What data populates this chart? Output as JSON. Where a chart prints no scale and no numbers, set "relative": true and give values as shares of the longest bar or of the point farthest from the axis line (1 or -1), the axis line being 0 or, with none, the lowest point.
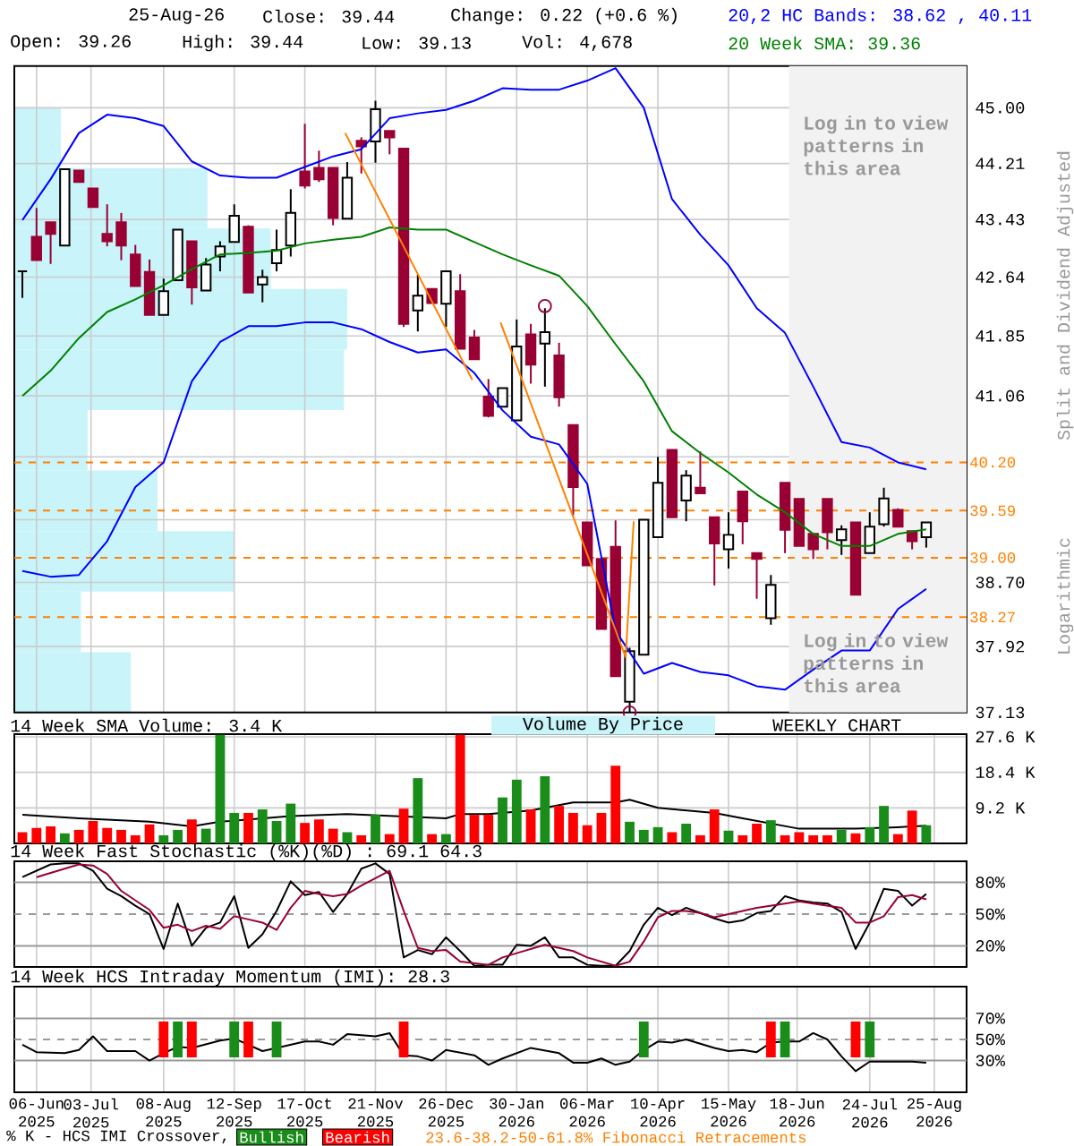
{
  "chart_data": [
    {
      "type": "candlestick",
      "title": "25-Aug-26",
      "ylabel": "Split and Dividend Adjusted",
      "log": "y",
      "grid": true,
      "tick_labels": "y",
      "legend": "top",
      "colors": [
        "#000000",
        "#990033",
        "#990033",
        "#000000",
        "#990033",
        "#990033",
        "#990033",
        "#990033",
        "#990033",
        "#990033",
        "#000000",
        "#000000",
        "#990033",
        "#000000",
        "#000000",
        "#000000",
        "#990033",
        "#000000",
        "#000000",
        "#000000",
        "#990033",
        "#990033",
        "#990033",
        "#000000",
        "#990033",
        "#000000",
        "#990033",
        "#990033",
        "#000000",
        "#990033",
        "#000000",
        "#990033",
        "#990033",
        "#990033",
        "#000000",
        "#000000",
        "#990033",
        "#000000",
        "#990033",
        "#990033",
        "#990033",
        "#990033",
        "#990033",
        "#000000",
        "#000000",
        "#000000",
        "#990033",
        "#000000",
        "#990033",
        "#990033",
        "#000000",
        "#990033",
        "#990033",
        "#000000",
        "#990033",
        "#990033",
        "#990033",
        "#990033",
        "#000000",
        "#990033",
        "#000000",
        "#000000",
        "#990033",
        "#990033",
        "#000000"
      ],
      "x": [
        "2025-05-30",
        "2025-06-06",
        "2025-06-13",
        "2025-06-20",
        "2025-06-27",
        "2025-07-04",
        "2025-07-11",
        "2025-07-18",
        "2025-07-25",
        "2025-08-01",
        "2025-08-08",
        "2025-08-15",
        "2025-08-22",
        "2025-08-29",
        "2025-09-05",
        "2025-09-12",
        "2025-09-19",
        "2025-09-26",
        "2025-10-03",
        "2025-10-10",
        "2025-10-17",
        "2025-10-24",
        "2025-10-31",
        "2025-11-07",
        "2025-11-14",
        "2025-11-21",
        "2025-11-28",
        "2025-12-05",
        "2025-12-12",
        "2025-12-19",
        "2025-12-26",
        "2026-01-02",
        "2026-01-09",
        "2026-01-16",
        "2026-01-23",
        "2026-01-30",
        "2026-02-06",
        "2026-02-13",
        "2026-02-20",
        "2026-02-27",
        "2026-03-06",
        "2026-03-13",
        "2026-03-20",
        "2026-03-27",
        "2026-04-03",
        "2026-04-10",
        "2026-04-17",
        "2026-04-24",
        "2026-05-01",
        "2026-05-08",
        "2026-05-15",
        "2026-05-22",
        "2026-05-29",
        "2026-06-05",
        "2026-06-12",
        "2026-06-19",
        "2026-06-26",
        "2026-07-03",
        "2026-07-10",
        "2026-07-17",
        "2026-07-24",
        "2026-07-31",
        "2026-08-07",
        "2026-08-14",
        "2026-08-21"
      ],
      "ohlc": [
        [
          42.72,
          42.72,
          42.36,
          42.72
        ],
        [
          43.19,
          43.59,
          42.87,
          42.87
        ],
        [
          43.39,
          43.39,
          42.82,
          43.23
        ],
        [
          43.07,
          44.13,
          43.07,
          44.13
        ],
        [
          44.11,
          44.11,
          43.95,
          43.95
        ],
        [
          43.86,
          43.86,
          43.6,
          43.6
        ],
        [
          43.23,
          43.64,
          43.06,
          43.13
        ],
        [
          43.39,
          43.52,
          42.87,
          43.07
        ],
        [
          42.95,
          43.08,
          42.52,
          42.52
        ],
        [
          42.71,
          42.88,
          42.13,
          42.13
        ],
        [
          42.13,
          42.62,
          42.13,
          42.45
        ],
        [
          42.6,
          43.29,
          42.6,
          43.29
        ],
        [
          43.13,
          43.13,
          42.27,
          42.5
        ],
        [
          42.46,
          42.9,
          42.46,
          42.81
        ],
        [
          42.92,
          43.13,
          42.72,
          43.06
        ],
        [
          43.12,
          43.64,
          43.12,
          43.48
        ],
        [
          43.33,
          43.35,
          42.43,
          42.43
        ],
        [
          42.54,
          42.74,
          42.3,
          42.64
        ],
        [
          42.83,
          43.29,
          42.72,
          43.01
        ],
        [
          43.07,
          43.85,
          42.92,
          43.52
        ],
        [
          44.1,
          44.77,
          43.86,
          43.9
        ],
        [
          44.15,
          44.39,
          43.95,
          43.99
        ],
        [
          44.15,
          44.15,
          43.35,
          43.45
        ],
        [
          43.44,
          44.23,
          43.44,
          44.01
        ],
        [
          44.53,
          44.58,
          44.07,
          44.45
        ],
        [
          44.52,
          45.1,
          44.22,
          44.98
        ],
        [
          44.67,
          44.67,
          44.34,
          44.58
        ],
        [
          44.42,
          44.42,
          41.97,
          42.01
        ],
        [
          42.19,
          42.68,
          41.91,
          42.39
        ],
        [
          42.48,
          42.48,
          42.29,
          42.29
        ],
        [
          42.28,
          42.72,
          41.97,
          42.72
        ],
        [
          42.45,
          42.68,
          41.68,
          41.68
        ],
        [
          41.83,
          41.93,
          41.54,
          41.54
        ],
        [
          41.05,
          41.28,
          40.78,
          40.8
        ],
        [
          40.92,
          41.16,
          40.92,
          41.16
        ],
        [
          40.74,
          42.07,
          40.74,
          41.71
        ],
        [
          41.87,
          42.01,
          41.22,
          41.47
        ],
        [
          41.75,
          42.22,
          41.18,
          41.9
        ],
        [
          41.59,
          41.76,
          40.92,
          41.04
        ],
        [
          40.68,
          40.68,
          39.53,
          39.89
        ],
        [
          39.44,
          39.44,
          38.91,
          38.91
        ],
        [
          38.99,
          38.99,
          38.13,
          38.13
        ],
        [
          39.14,
          39.47,
          37.56,
          37.56
        ],
        [
          37.26,
          37.9,
          37.13,
          37.86
        ],
        [
          37.82,
          39.48,
          37.82,
          39.48
        ],
        [
          39.26,
          40.27,
          39.26,
          39.95
        ],
        [
          40.36,
          40.36,
          39.51,
          39.51
        ],
        [
          39.72,
          40.1,
          39.46,
          40.03
        ],
        [
          39.88,
          40.34,
          39.81,
          39.81
        ],
        [
          39.51,
          39.51,
          38.66,
          39.18
        ],
        [
          39.11,
          39.57,
          38.87,
          39.29
        ],
        [
          39.83,
          39.83,
          39.17,
          39.46
        ],
        [
          39.06,
          39.06,
          38.5,
          38.99
        ],
        [
          38.26,
          38.79,
          38.18,
          38.67
        ],
        [
          39.95,
          39.95,
          39.06,
          39.35
        ],
        [
          39.74,
          39.74,
          39.15,
          39.15
        ],
        [
          39.3,
          39.3,
          38.99,
          39.11
        ],
        [
          39.74,
          39.74,
          39.11,
          39.32
        ],
        [
          39.22,
          39.41,
          39.04,
          39.36
        ],
        [
          39.44,
          39.44,
          38.55,
          38.55
        ],
        [
          39.06,
          39.57,
          39.06,
          39.39
        ],
        [
          39.42,
          39.88,
          39.39,
          39.75
        ],
        [
          39.6,
          39.62,
          39.39,
          39.39
        ],
        [
          39.34,
          39.34,
          39.11,
          39.21
        ],
        [
          39.26,
          39.44,
          39.13,
          39.44
        ]
      ],
      "series": [
        {
          "type": "line",
          "name": "20,2 HC Bands: 38.62 , 40.11",
          "color": "#0000ff",
          "x": [
            "2025-05-30",
            "2025-06-13",
            "2025-06-27",
            "2025-07-11",
            "2025-07-25",
            "2025-08-08",
            "2025-08-22",
            "2025-09-05",
            "2025-09-19",
            "2025-10-03",
            "2025-10-17",
            "2025-10-31",
            "2025-11-14",
            "2025-11-28",
            "2025-12-12",
            "2025-12-26",
            "2026-01-09",
            "2026-01-23",
            "2026-02-06",
            "2026-02-20",
            "2026-03-06",
            "2026-03-20",
            "2026-04-03",
            "2026-04-17",
            "2026-05-01",
            "2026-05-15",
            "2026-05-29",
            "2026-06-12",
            "2026-06-26",
            "2026-07-10",
            "2026-07-24",
            "2026-08-07",
            "2026-08-21"
          ],
          "values": [
            43.42,
            43.99,
            44.64,
            44.9,
            44.85,
            44.74,
            44.24,
            44.04,
            44.01,
            44.01,
            44.16,
            44.31,
            44.41,
            44.85,
            44.92,
            44.97,
            45.1,
            45.28,
            45.26,
            45.26,
            45.39,
            45.57,
            45.0,
            43.71,
            43.22,
            42.8,
            42.22,
            41.89,
            41.18,
            40.46,
            40.39,
            40.2,
            40.11
          ]
        },
        {
          "type": "line",
          "color": "#0000ff",
          "x": [
            "2025-05-30",
            "2025-06-13",
            "2025-06-27",
            "2025-07-11",
            "2025-07-25",
            "2025-08-08",
            "2025-08-22",
            "2025-09-05",
            "2025-09-19",
            "2025-10-03",
            "2025-10-17",
            "2025-10-31",
            "2025-11-14",
            "2025-11-28",
            "2025-12-12",
            "2025-12-26",
            "2026-01-09",
            "2026-01-23",
            "2026-02-06",
            "2026-02-20",
            "2026-03-06",
            "2026-03-20",
            "2026-04-03",
            "2026-04-17",
            "2026-05-01",
            "2026-05-15",
            "2026-05-29",
            "2026-06-12",
            "2026-06-26",
            "2026-07-10",
            "2026-07-24",
            "2026-08-07",
            "2026-08-21"
          ],
          "values": [
            38.84,
            38.77,
            38.79,
            39.21,
            39.89,
            40.2,
            41.25,
            41.77,
            41.98,
            41.98,
            42.03,
            42.03,
            41.94,
            41.77,
            41.63,
            41.67,
            41.36,
            40.87,
            40.53,
            40.43,
            39.93,
            38.11,
            37.59,
            37.72,
            37.61,
            37.57,
            37.44,
            37.4,
            37.64,
            37.87,
            37.87,
            38.37,
            38.62
          ]
        },
        {
          "type": "line",
          "name": "20 Week SMA: 39.36",
          "color": "#008000",
          "x": [
            "2025-05-30",
            "2025-06-13",
            "2025-06-27",
            "2025-07-11",
            "2025-07-25",
            "2025-08-08",
            "2025-08-22",
            "2025-09-05",
            "2025-09-19",
            "2025-10-03",
            "2025-10-17",
            "2025-10-31",
            "2025-11-14",
            "2025-11-28",
            "2025-12-12",
            "2025-12-26",
            "2026-01-09",
            "2026-01-23",
            "2026-02-06",
            "2026-02-20",
            "2026-03-06",
            "2026-03-20",
            "2026-04-03",
            "2026-04-17",
            "2026-05-01",
            "2026-05-15",
            "2026-05-29",
            "2026-06-12",
            "2026-06-26",
            "2026-07-10",
            "2026-07-24",
            "2026-08-07",
            "2026-08-21"
          ],
          "values": [
            41.06,
            41.39,
            41.82,
            42.17,
            42.34,
            42.53,
            42.75,
            42.95,
            42.97,
            43.0,
            43.1,
            43.15,
            43.19,
            43.32,
            43.29,
            43.29,
            43.12,
            42.95,
            42.8,
            42.66,
            42.25,
            41.74,
            41.25,
            40.6,
            40.32,
            40.07,
            39.8,
            39.57,
            39.3,
            39.15,
            39.15,
            39.3,
            39.36
          ]
        },
        {
          "type": "line",
          "color": "#ff8000",
          "x": [
            "2025-11-06",
            "2026-01-08",
            "2026-01-15",
            "2026-01-22",
            "2026-03-25",
            "2026-03-29"
          ],
          "values": [
            44.64,
            41.27,
            null,
            42.03,
            37.79,
            39.46
          ]
        },
        {
          "type": "scatter",
          "marker": "circle",
          "color": "#990033",
          "x": [
            "2026-02-13",
            "2026-03-27"
          ],
          "values": [
            42.25,
            37.13
          ]
        }
      ],
      "xlim": [
        "2025-05-26",
        "2026-09-10"
      ],
      "xticks": [
        {
          "value": "2025-06-06",
          "label": null
        },
        {
          "value": "2025-07-03",
          "label": null
        },
        {
          "value": "2025-08-08",
          "label": null
        },
        {
          "value": "2025-09-12",
          "label": null
        },
        {
          "value": "2025-10-17",
          "label": null
        },
        {
          "value": "2025-11-21",
          "label": null
        },
        {
          "value": "2025-12-26",
          "label": null
        },
        {
          "value": "2026-01-30",
          "label": null
        },
        {
          "value": "2026-03-06",
          "label": null
        },
        {
          "value": "2026-04-10",
          "label": null
        },
        {
          "value": "2026-05-15",
          "label": null
        },
        {
          "value": "2026-06-18",
          "label": null
        },
        {
          "value": "2026-07-24",
          "label": null
        },
        {
          "value": "2026-08-25",
          "label": null
        }
      ],
      "ylim": [
        37.13,
        45.6
      ],
      "yticks": [
        {
          "value": 37.13,
          "label": "37.13"
        },
        {
          "value": 37.92,
          "label": "37.92"
        },
        {
          "value": 38.7,
          "label": "38.70"
        },
        {
          "value": 39.48,
          "label": null
        },
        {
          "value": 40.27,
          "label": null
        },
        {
          "value": 41.06,
          "label": "41.06"
        },
        {
          "value": 41.85,
          "label": "41.85"
        },
        {
          "value": 42.64,
          "label": "42.64"
        },
        {
          "value": 43.43,
          "label": "43.43"
        },
        {
          "value": 44.21,
          "label": "44.21"
        },
        {
          "value": 45.0,
          "label": "45.00"
        }
      ],
      "ref_lines": [
        {
          "axis": "y",
          "value": 40.2,
          "label": "40.20",
          "color": "#ff8000",
          "line_style": "dashed"
        },
        {
          "axis": "y",
          "value": 39.59,
          "label": "39.59",
          "color": "#ff8000",
          "line_style": "dashed"
        },
        {
          "axis": "y",
          "value": 39.0,
          "label": "39.00",
          "color": "#ff8000",
          "line_style": "dashed"
        },
        {
          "axis": "y",
          "value": 38.27,
          "label": "38.27",
          "color": "#ff8000",
          "line_style": "dashed"
        }
      ],
      "bands": [
        {
          "axis": "x",
          "from": "2026-06-14",
          "to": "2026-09-10",
          "color": "#f2f2f2"
        }
      ],
      "annotations": [
        "Close: 39.44",
        "Change: 0.22 (+0.6 %)",
        "Open: 39.26",
        "High: 39.44",
        "Low: 39.13",
        "Vol: 4,678",
        "Log in to view patterns in this area",
        "Log in to view patterns in this area",
        "WEEKLY CHART",
        "23.6-38.2-50-61.8% Fibonacci Retracements",
        "Logarithmic",
        "Volume By Price"
      ]
    },
    {
      "type": "bar",
      "orientation": "horizontal",
      "relative": true,
      "color": "#c8f4fa",
      "categories": [
        null,
        null,
        null,
        null,
        null,
        null,
        null,
        null,
        null,
        null
      ],
      "values": [
        0.14,
        0.58,
        0.77,
        1,
        0.99,
        0.22,
        0.43,
        0.66,
        0.2,
        0.35
      ]
    },
    {
      "type": "bar",
      "title": "14 Week SMA Volume: 3.4 K",
      "grid": true,
      "tick_labels": "y",
      "x": [
        "2025-05-30",
        "2025-06-06",
        "2025-06-13",
        "2025-06-20",
        "2025-06-27",
        "2025-07-04",
        "2025-07-11",
        "2025-07-18",
        "2025-07-25",
        "2025-08-01",
        "2025-08-08",
        "2025-08-15",
        "2025-08-22",
        "2025-08-29",
        "2025-09-05",
        "2025-09-12",
        "2025-09-19",
        "2025-09-26",
        "2025-10-03",
        "2025-10-10",
        "2025-10-17",
        "2025-10-24",
        "2025-10-31",
        "2025-11-07",
        "2025-11-14",
        "2025-11-21",
        "2025-11-28",
        "2025-12-05",
        "2025-12-12",
        "2025-12-19",
        "2025-12-26",
        "2026-01-02",
        "2026-01-09",
        "2026-01-16",
        "2026-01-23",
        "2026-01-30",
        "2026-02-06",
        "2026-02-13",
        "2026-02-20",
        "2026-02-27",
        "2026-03-06",
        "2026-03-13",
        "2026-03-20",
        "2026-03-27",
        "2026-04-03",
        "2026-04-10",
        "2026-04-17",
        "2026-04-24",
        "2026-05-01",
        "2026-05-08",
        "2026-05-15",
        "2026-05-22",
        "2026-05-29",
        "2026-06-05",
        "2026-06-12",
        "2026-06-19",
        "2026-06-26",
        "2026-07-03",
        "2026-07-10",
        "2026-07-17",
        "2026-07-24",
        "2026-07-31",
        "2026-08-07",
        "2026-08-14",
        "2026-08-21"
      ],
      "series": [
        {
          "type": "bar",
          "values": [
            2.9,
            4.0,
            4.4,
            2.6,
            3.5,
            5.8,
            4.0,
            3.5,
            2.1,
            4.9,
            2.1,
            3.5,
            6.2,
            3.8,
            28.1,
            7.9,
            7.9,
            8.8,
            5.8,
            10.3,
            5.3,
            6.2,
            3.8,
            2.9,
            2.1,
            7.4,
            2.4,
            9.0,
            16.9,
            2.4,
            2.4,
            28.1,
            7.4,
            7.4,
            11.9,
            16.5,
            8.8,
            17.4,
            9.7,
            7.9,
            4.7,
            7.9,
            20.1,
            5.6,
            3.5,
            4.2,
            2.9,
            5.1,
            2.1,
            8.8,
            3.3,
            2.1,
            5.1,
            6.0,
            2.1,
            2.9,
            2.1,
            2.1,
            3.5,
            2.6,
            4.2,
            9.7,
            2.4,
            8.5,
            4.7
          ],
          "colors": [
            "#ff0000",
            "#ff0000",
            "#ff0000",
            "#1a8c1a",
            "#ff0000",
            "#ff0000",
            "#ff0000",
            "#ff0000",
            "#ff0000",
            "#ff0000",
            "#1a8c1a",
            "#1a8c1a",
            "#ff0000",
            "#1a8c1a",
            "#1a8c1a",
            "#1a8c1a",
            "#ff0000",
            "#1a8c1a",
            "#1a8c1a",
            "#1a8c1a",
            "#ff0000",
            "#ff0000",
            "#ff0000",
            "#1a8c1a",
            "#ff0000",
            "#1a8c1a",
            "#ff0000",
            "#ff0000",
            "#1a8c1a",
            "#ff0000",
            "#1a8c1a",
            "#ff0000",
            "#ff0000",
            "#ff0000",
            "#1a8c1a",
            "#1a8c1a",
            "#ff0000",
            "#1a8c1a",
            "#ff0000",
            "#ff0000",
            "#ff0000",
            "#ff0000",
            "#ff0000",
            "#1a8c1a",
            "#1a8c1a",
            "#1a8c1a",
            "#ff0000",
            "#1a8c1a",
            "#ff0000",
            "#ff0000",
            "#1a8c1a",
            "#ff0000",
            "#ff0000",
            "#1a8c1a",
            "#ff0000",
            "#ff0000",
            "#ff0000",
            "#ff0000",
            "#1a8c1a",
            "#ff0000",
            "#1a8c1a",
            "#1a8c1a",
            "#ff0000",
            "#ff0000",
            "#1a8c1a"
          ]
        },
        {
          "type": "line",
          "color": "#000000",
          "x": [
            "2025-05-30",
            "2025-06-27",
            "2025-08-01",
            "2025-08-22",
            "2025-09-05",
            "2025-10-10",
            "2025-11-07",
            "2025-12-26",
            "2026-01-02",
            "2026-01-16",
            "2026-02-06",
            "2026-02-27",
            "2026-03-20",
            "2026-03-27",
            "2026-04-10",
            "2026-05-08",
            "2026-05-22",
            "2026-06-19",
            "2026-07-17",
            "2026-08-07",
            "2026-08-21"
          ],
          "values": [
            7.4,
            6.5,
            5.6,
            4.4,
            5.6,
            7.1,
            7.6,
            6.5,
            7.6,
            7.6,
            8.5,
            10.6,
            10.6,
            11.3,
            9.2,
            7.9,
            6.5,
            3.8,
            3.8,
            4.2,
            4.6
          ]
        }
      ],
      "xlim": [
        "2025-05-26",
        "2026-09-10"
      ],
      "xticks": [
        {
          "value": "2025-06-06",
          "label": null
        },
        {
          "value": "2025-07-03",
          "label": null
        },
        {
          "value": "2025-08-08",
          "label": null
        },
        {
          "value": "2025-09-12",
          "label": null
        },
        {
          "value": "2025-10-17",
          "label": null
        },
        {
          "value": "2025-11-21",
          "label": null
        },
        {
          "value": "2025-12-26",
          "label": null
        },
        {
          "value": "2026-01-30",
          "label": null
        },
        {
          "value": "2026-03-06",
          "label": null
        },
        {
          "value": "2026-04-10",
          "label": null
        },
        {
          "value": "2026-05-15",
          "label": null
        },
        {
          "value": "2026-06-18",
          "label": null
        },
        {
          "value": "2026-07-24",
          "label": null
        },
        {
          "value": "2026-08-25",
          "label": null
        }
      ],
      "ylim": [
        0,
        28.3
      ],
      "yticks": [
        {
          "value": 9.2,
          "label": "9.2 K"
        },
        {
          "value": 18.4,
          "label": "18.4 K"
        },
        {
          "value": 27.6,
          "label": "27.6 K"
        }
      ]
    },
    {
      "type": "line",
      "title": "14 Week Fast Stochastic (%K)(%D) : 69.1 64.3",
      "grid": "x",
      "tick_labels": "y",
      "x": [
        "2025-05-30",
        "2025-06-06",
        "2025-06-13",
        "2025-06-20",
        "2025-06-27",
        "2025-07-04",
        "2025-07-11",
        "2025-07-18",
        "2025-07-25",
        "2025-08-01",
        "2025-08-08",
        "2025-08-15",
        "2025-08-22",
        "2025-08-29",
        "2025-09-05",
        "2025-09-12",
        "2025-09-19",
        "2025-09-26",
        "2025-10-03",
        "2025-10-10",
        "2025-10-17",
        "2025-10-24",
        "2025-10-31",
        "2025-11-07",
        "2025-11-14",
        "2025-11-21",
        "2025-11-28",
        "2025-12-05",
        "2025-12-12",
        "2025-12-19",
        "2025-12-26",
        "2026-01-02",
        "2026-01-09",
        "2026-01-16",
        "2026-01-23",
        "2026-01-30",
        "2026-02-06",
        "2026-02-13",
        "2026-02-20",
        "2026-02-27",
        "2026-03-06",
        "2026-03-13",
        "2026-03-20",
        "2026-03-27",
        "2026-04-03",
        "2026-04-10",
        "2026-04-17",
        "2026-04-24",
        "2026-05-01",
        "2026-05-08",
        "2026-05-15",
        "2026-05-22",
        "2026-05-29",
        "2026-06-05",
        "2026-06-12",
        "2026-06-19",
        "2026-06-26",
        "2026-07-03",
        "2026-07-10",
        "2026-07-17",
        "2026-07-24",
        "2026-07-31",
        "2026-08-07",
        "2026-08-14",
        "2026-08-21"
      ],
      "series": [
        {
          "color": "#000000",
          "values": [
            85,
            91,
            97,
            98,
            98,
            91,
            74,
            67,
            58,
            50,
            17,
            60,
            20,
            37,
            42,
            67,
            18,
            31,
            53,
            81,
            68,
            71,
            52,
            69,
            93,
            98,
            88,
            9,
            16,
            12,
            28,
            15,
            1,
            2,
            2,
            21,
            20,
            28,
            9,
            9,
            2,
            1,
            1,
            15,
            40,
            56,
            49,
            56,
            51,
            46,
            42,
            44,
            51,
            53,
            67,
            63,
            61,
            60,
            52,
            17,
            42,
            74,
            72,
            58,
            69
          ]
        },
        {
          "color": "#990033",
          "x": [
            "2025-06-06",
            "2025-06-27",
            "2025-07-04",
            "2025-07-11",
            "2025-07-18",
            "2025-08-01",
            "2025-08-08",
            "2025-08-15",
            "2025-08-22",
            "2025-08-29",
            "2025-09-05",
            "2025-09-12",
            "2025-09-19",
            "2025-09-26",
            "2025-10-03",
            "2025-10-10",
            "2025-10-17",
            "2025-10-24",
            "2025-10-31",
            "2025-11-07",
            "2025-11-14",
            "2025-11-28",
            "2025-12-05",
            "2025-12-12",
            "2025-12-19",
            "2025-12-26",
            "2026-01-02",
            "2026-01-16",
            "2026-01-23",
            "2026-01-30",
            "2026-02-13",
            "2026-02-20",
            "2026-02-27",
            "2026-03-06",
            "2026-03-20",
            "2026-03-27",
            "2026-04-03",
            "2026-04-10",
            "2026-04-17",
            "2026-04-24",
            "2026-05-01",
            "2026-05-08",
            "2026-05-15",
            "2026-05-22",
            "2026-05-29",
            "2026-06-12",
            "2026-06-19",
            "2026-06-26",
            "2026-07-10",
            "2026-07-17",
            "2026-07-24",
            "2026-07-31",
            "2026-08-07",
            "2026-08-14",
            "2026-08-21"
          ],
          "values": [
            85,
            97,
            96,
            88,
            72,
            54,
            37,
            40,
            34,
            39,
            36,
            48,
            45,
            42,
            35,
            56,
            72,
            69,
            67,
            69,
            77,
            91,
            53,
            18,
            15,
            16,
            5,
            2,
            9,
            13,
            21,
            18,
            15,
            9,
            1,
            5,
            24,
            47,
            53,
            53,
            51,
            47,
            50,
            53,
            56,
            60,
            62,
            60,
            56,
            42,
            42,
            48,
            66,
            68,
            64
          ]
        }
      ],
      "xlim": [
        "2025-05-26",
        "2026-09-10"
      ],
      "xticks": [
        {
          "value": "2025-06-06",
          "label": null
        },
        {
          "value": "2025-07-03",
          "label": null
        },
        {
          "value": "2025-08-08",
          "label": null
        },
        {
          "value": "2025-09-12",
          "label": null
        },
        {
          "value": "2025-10-17",
          "label": null
        },
        {
          "value": "2025-11-21",
          "label": null
        },
        {
          "value": "2025-12-26",
          "label": null
        },
        {
          "value": "2026-01-30",
          "label": null
        },
        {
          "value": "2026-03-06",
          "label": null
        },
        {
          "value": "2026-04-10",
          "label": null
        },
        {
          "value": "2026-05-15",
          "label": null
        },
        {
          "value": "2026-06-18",
          "label": null
        },
        {
          "value": "2026-07-24",
          "label": null
        },
        {
          "value": "2026-08-25",
          "label": null
        }
      ],
      "ylim": [
        0,
        100
      ],
      "yticks": [
        {
          "value": 20,
          "label": "20%"
        },
        {
          "value": 50,
          "label": "50%"
        },
        {
          "value": 80,
          "label": "80%"
        }
      ],
      "ref_lines": [
        {
          "axis": "y",
          "value": 80,
          "color": "#999999"
        },
        {
          "axis": "y",
          "value": 50,
          "color": "#999999",
          "line_style": "dashed"
        },
        {
          "axis": "y",
          "value": 20,
          "color": "#999999"
        }
      ]
    },
    {
      "type": "line",
      "title": "14 Week HCS Intraday Momentum (IMI): 28.3",
      "grid": "x",
      "legend": "bottom",
      "series": [
        {
          "color": "#000000",
          "x": [
            "2025-05-30",
            "2025-06-06",
            "2025-06-20",
            "2025-06-27",
            "2025-07-04",
            "2025-07-11",
            "2025-07-25",
            "2025-08-01",
            "2025-08-08",
            "2025-08-15",
            "2025-08-22",
            "2025-09-05",
            "2025-09-12",
            "2025-09-26",
            "2025-10-03",
            "2025-10-17",
            "2025-10-24",
            "2025-10-31",
            "2025-11-07",
            "2025-11-21",
            "2025-11-28",
            "2025-12-05",
            "2025-12-12",
            "2025-12-19",
            "2025-12-26",
            "2026-01-09",
            "2026-01-16",
            "2026-01-23",
            "2026-02-06",
            "2026-02-20",
            "2026-02-27",
            "2026-03-06",
            "2026-03-13",
            "2026-03-20",
            "2026-03-27",
            "2026-04-03",
            "2026-04-10",
            "2026-04-17",
            "2026-04-24",
            "2026-05-08",
            "2026-05-15",
            "2026-05-22",
            "2026-05-29",
            "2026-06-05",
            "2026-06-12",
            "2026-06-19",
            "2026-06-26",
            "2026-07-03",
            "2026-07-10",
            "2026-07-17",
            "2026-07-24",
            "2026-07-31",
            "2026-08-07",
            "2026-08-14",
            "2026-08-21"
          ],
          "values": [
            45,
            38,
            37,
            40,
            53,
            39,
            39,
            30,
            37,
            43,
            42,
            49,
            51,
            39,
            42,
            48,
            48,
            45,
            55,
            53,
            56,
            35,
            34,
            30,
            40,
            35,
            26,
            32,
            42,
            37,
            28,
            28,
            32,
            26,
            29,
            40,
            48,
            47,
            50,
            42,
            39,
            40,
            38,
            47,
            48,
            48,
            56,
            50,
            34,
            20,
            29,
            29,
            29,
            29,
            28
          ]
        },
        {
          "type": "bar",
          "name": "Bullish",
          "color": "#1a8c1a",
          "x": [
            "2025-08-15",
            "2025-09-12",
            "2025-10-03",
            "2026-04-03",
            "2026-06-12",
            "2026-07-24"
          ],
          "base": [
            33,
            33,
            33,
            33,
            33,
            33
          ],
          "values": [
            34,
            34,
            34,
            34,
            34,
            34
          ]
        },
        {
          "type": "bar",
          "name": "Bearish",
          "color": "#ff0000",
          "x": [
            "2025-08-08",
            "2025-08-22",
            "2025-09-19",
            "2025-12-05",
            "2026-06-05",
            "2026-07-17"
          ],
          "base": [
            33,
            33,
            33,
            33,
            33,
            33
          ],
          "values": [
            34,
            34,
            34,
            34,
            34,
            34
          ]
        }
      ],
      "xlim": [
        "2025-05-26",
        "2026-09-10"
      ],
      "xticks": [
        {
          "value": "2025-06-06",
          "label": "06-Jun 2025"
        },
        {
          "value": "2025-07-03",
          "label": "03-Jul 2025"
        },
        {
          "value": "2025-08-08",
          "label": "08-Aug 2025"
        },
        {
          "value": "2025-09-12",
          "label": "12-Sep 2025"
        },
        {
          "value": "2025-10-17",
          "label": "17-Oct 2025"
        },
        {
          "value": "2025-11-21",
          "label": "21-Nov 2025"
        },
        {
          "value": "2025-12-26",
          "label": "26-Dec 2025"
        },
        {
          "value": "2026-01-30",
          "label": "30-Jan 2026"
        },
        {
          "value": "2026-03-06",
          "label": "06-Mar 2026"
        },
        {
          "value": "2026-04-10",
          "label": "10-Apr 2026"
        },
        {
          "value": "2026-05-15",
          "label": "15-May 2026"
        },
        {
          "value": "2026-06-18",
          "label": "18-Jun 2026"
        },
        {
          "value": "2026-07-24",
          "label": "24-Jul 2026"
        },
        {
          "value": "2026-08-25",
          "label": "25-Aug 2026"
        }
      ],
      "ylim": [
        0,
        100
      ],
      "yticks": [
        {
          "value": 30,
          "label": "30%"
        },
        {
          "value": 50,
          "label": "50%"
        },
        {
          "value": 70,
          "label": "70%"
        }
      ],
      "ref_lines": [
        {
          "axis": "y",
          "value": 70,
          "color": "#999999"
        },
        {
          "axis": "y",
          "value": 50,
          "color": "#999999",
          "line_style": "dashed"
        },
        {
          "axis": "y",
          "value": 30,
          "color": "#999999"
        }
      ],
      "annotations": [
        "% K - HCS IMI Crossover,"
      ]
    }
  ]
}
